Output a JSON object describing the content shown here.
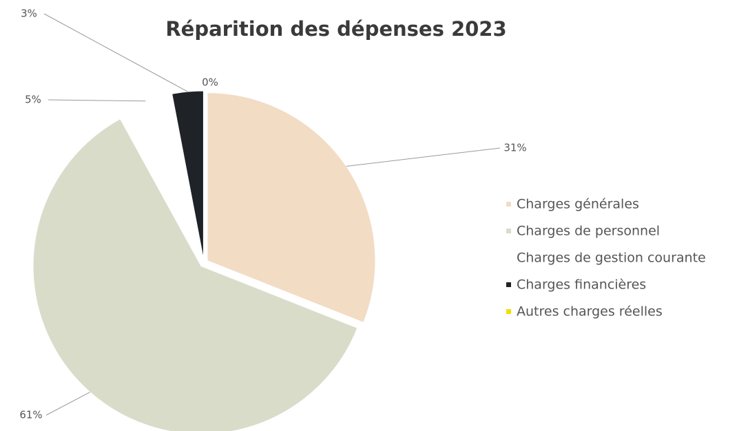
{
  "chart_data": {
    "type": "pie",
    "title": "Réparition des dépenses 2023",
    "categories": [
      "Charges générales",
      "Charges de personnel",
      "Charges de gestion courante",
      "Charges financières",
      "Autres charges réelles"
    ],
    "values": [
      31,
      61,
      5,
      3,
      0
    ],
    "value_labels": [
      "31%",
      "61%",
      "5%",
      "3%",
      "0%"
    ],
    "colors": [
      "#f2dcc4",
      "#d9dcc9",
      "#ffffff",
      "#1f2327",
      "#f2df00"
    ],
    "legend": "right"
  }
}
